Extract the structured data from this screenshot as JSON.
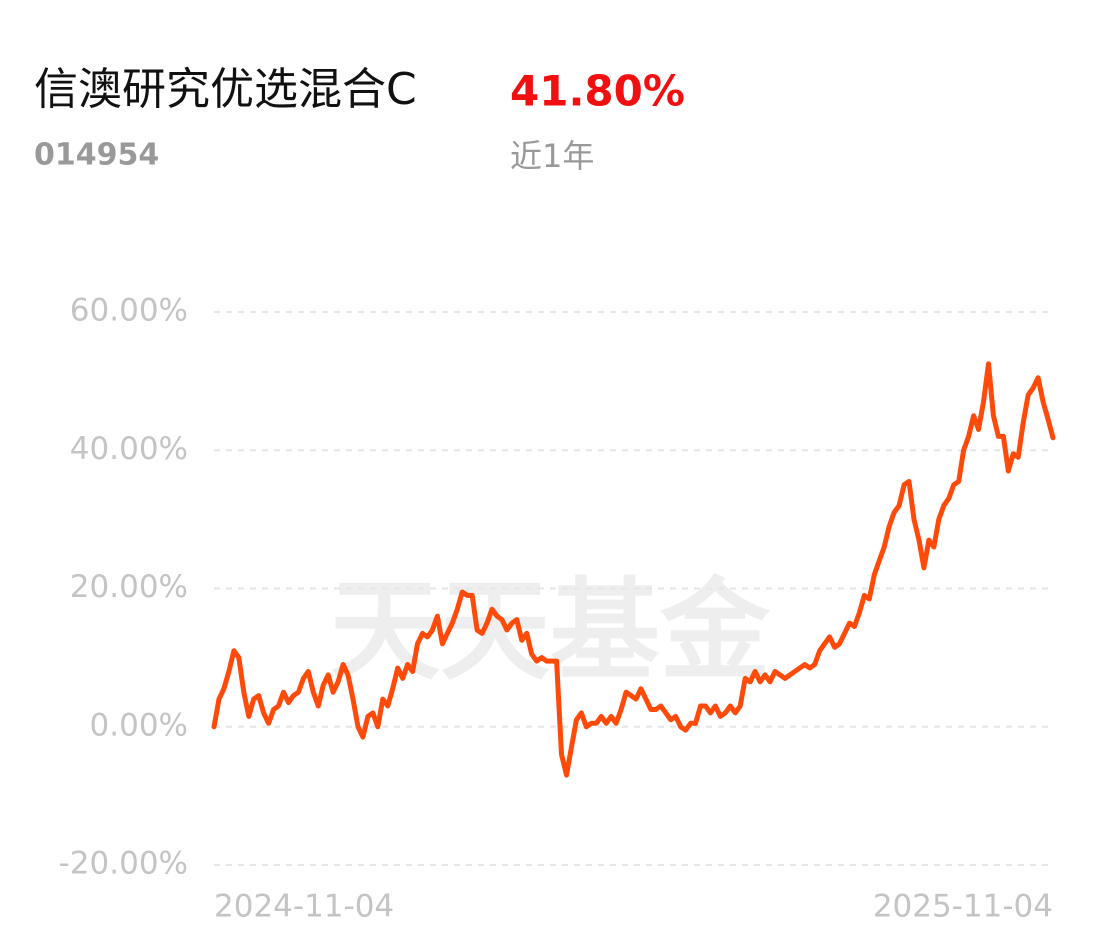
{
  "header": {
    "title": "信澳研究优选混合C",
    "code": "014954",
    "return": "41.80%",
    "period": "近1年"
  },
  "watermark": "天天基金",
  "chart_data": {
    "type": "line",
    "color": "#ff4a0a",
    "grid": true,
    "ylim": [
      -20,
      60
    ],
    "yticks": [
      {
        "value": -20,
        "label": "-20.00%"
      },
      {
        "value": 0,
        "label": "0.00%"
      },
      {
        "value": 20,
        "label": "20.00%"
      },
      {
        "value": 40,
        "label": "40.00%"
      },
      {
        "value": 60,
        "label": "60.00%"
      }
    ],
    "categories": [
      "2024-11-04",
      null,
      null,
      null,
      null,
      null,
      null,
      null,
      null,
      null,
      null,
      null,
      null,
      null,
      null,
      null,
      null,
      null,
      null,
      null,
      null,
      null,
      null,
      null,
      null,
      null,
      null,
      null,
      null,
      null,
      null,
      null,
      null,
      null,
      null,
      null,
      null,
      null,
      null,
      null,
      null,
      null,
      null,
      null,
      null,
      null,
      null,
      null,
      null,
      null,
      null,
      null,
      null,
      null,
      null,
      null,
      null,
      null,
      null,
      null,
      null,
      null,
      null,
      null,
      null,
      null,
      null,
      null,
      null,
      null,
      null,
      null,
      null,
      null,
      null,
      null,
      null,
      null,
      null,
      null,
      null,
      null,
      null,
      null,
      null,
      null,
      null,
      null,
      null,
      null,
      null,
      null,
      null,
      null,
      null,
      null,
      null,
      null,
      null,
      null,
      null,
      null,
      null,
      null,
      null,
      null,
      null,
      null,
      null,
      null,
      null,
      null,
      null,
      null,
      null,
      null,
      null,
      null,
      null,
      null,
      null,
      null,
      null,
      null,
      null,
      null,
      null,
      null,
      null,
      null,
      null,
      null,
      null,
      null,
      null,
      null,
      null,
      null,
      null,
      null,
      null,
      null,
      null,
      null,
      null,
      null,
      null,
      null,
      null,
      null,
      null,
      null,
      null,
      null,
      null,
      null,
      null,
      null,
      null,
      null,
      null,
      null,
      null,
      null,
      null,
      null,
      null,
      null,
      null,
      "2025-11-04"
    ],
    "values": [
      0,
      4,
      5.5,
      8,
      11,
      10,
      5,
      1.5,
      4,
      4.5,
      2,
      0.5,
      2.5,
      3,
      5,
      3.5,
      4.5,
      5,
      7,
      8,
      5,
      3,
      6,
      7.5,
      5,
      6.5,
      9,
      7.5,
      4,
      0,
      -1.5,
      1.5,
      2,
      0,
      4,
      3,
      5.5,
      8.5,
      7,
      9,
      8,
      12,
      13.5,
      13,
      14,
      16,
      12,
      13.5,
      15,
      17,
      19.5,
      19,
      19,
      14,
      13.5,
      15,
      17,
      16,
      15.5,
      14,
      15,
      15.5,
      12.5,
      13.5,
      10.5,
      9.5,
      10,
      9.5,
      9.5,
      9.5,
      -4,
      -7,
      -3,
      1,
      2,
      0,
      0.5,
      0.5,
      1.5,
      0.5,
      1.5,
      0.5,
      2.5,
      5,
      4.5,
      4,
      5.5,
      4,
      2.5,
      2.5,
      3,
      2,
      1,
      1.5,
      0,
      -0.5,
      0.5,
      0.5,
      3,
      3,
      2,
      3,
      1.5,
      2,
      3,
      2,
      3,
      7,
      6.5,
      8,
      6.5,
      7.5,
      6.5,
      8,
      7.5,
      7,
      7.5,
      8,
      8.5,
      9,
      8.5,
      9,
      11,
      12,
      13,
      11.5,
      12,
      13.5,
      15,
      14.5,
      16.5,
      19,
      18.5,
      22,
      24,
      26,
      29,
      31,
      32,
      35,
      35.5,
      30,
      27,
      23,
      27,
      26,
      30,
      32,
      33,
      35,
      35.5,
      40,
      42,
      45,
      43,
      47,
      52.5,
      45,
      42,
      42,
      37,
      39.5,
      39,
      44,
      48,
      49,
      50.5,
      47,
      44.5,
      41.8
    ]
  }
}
